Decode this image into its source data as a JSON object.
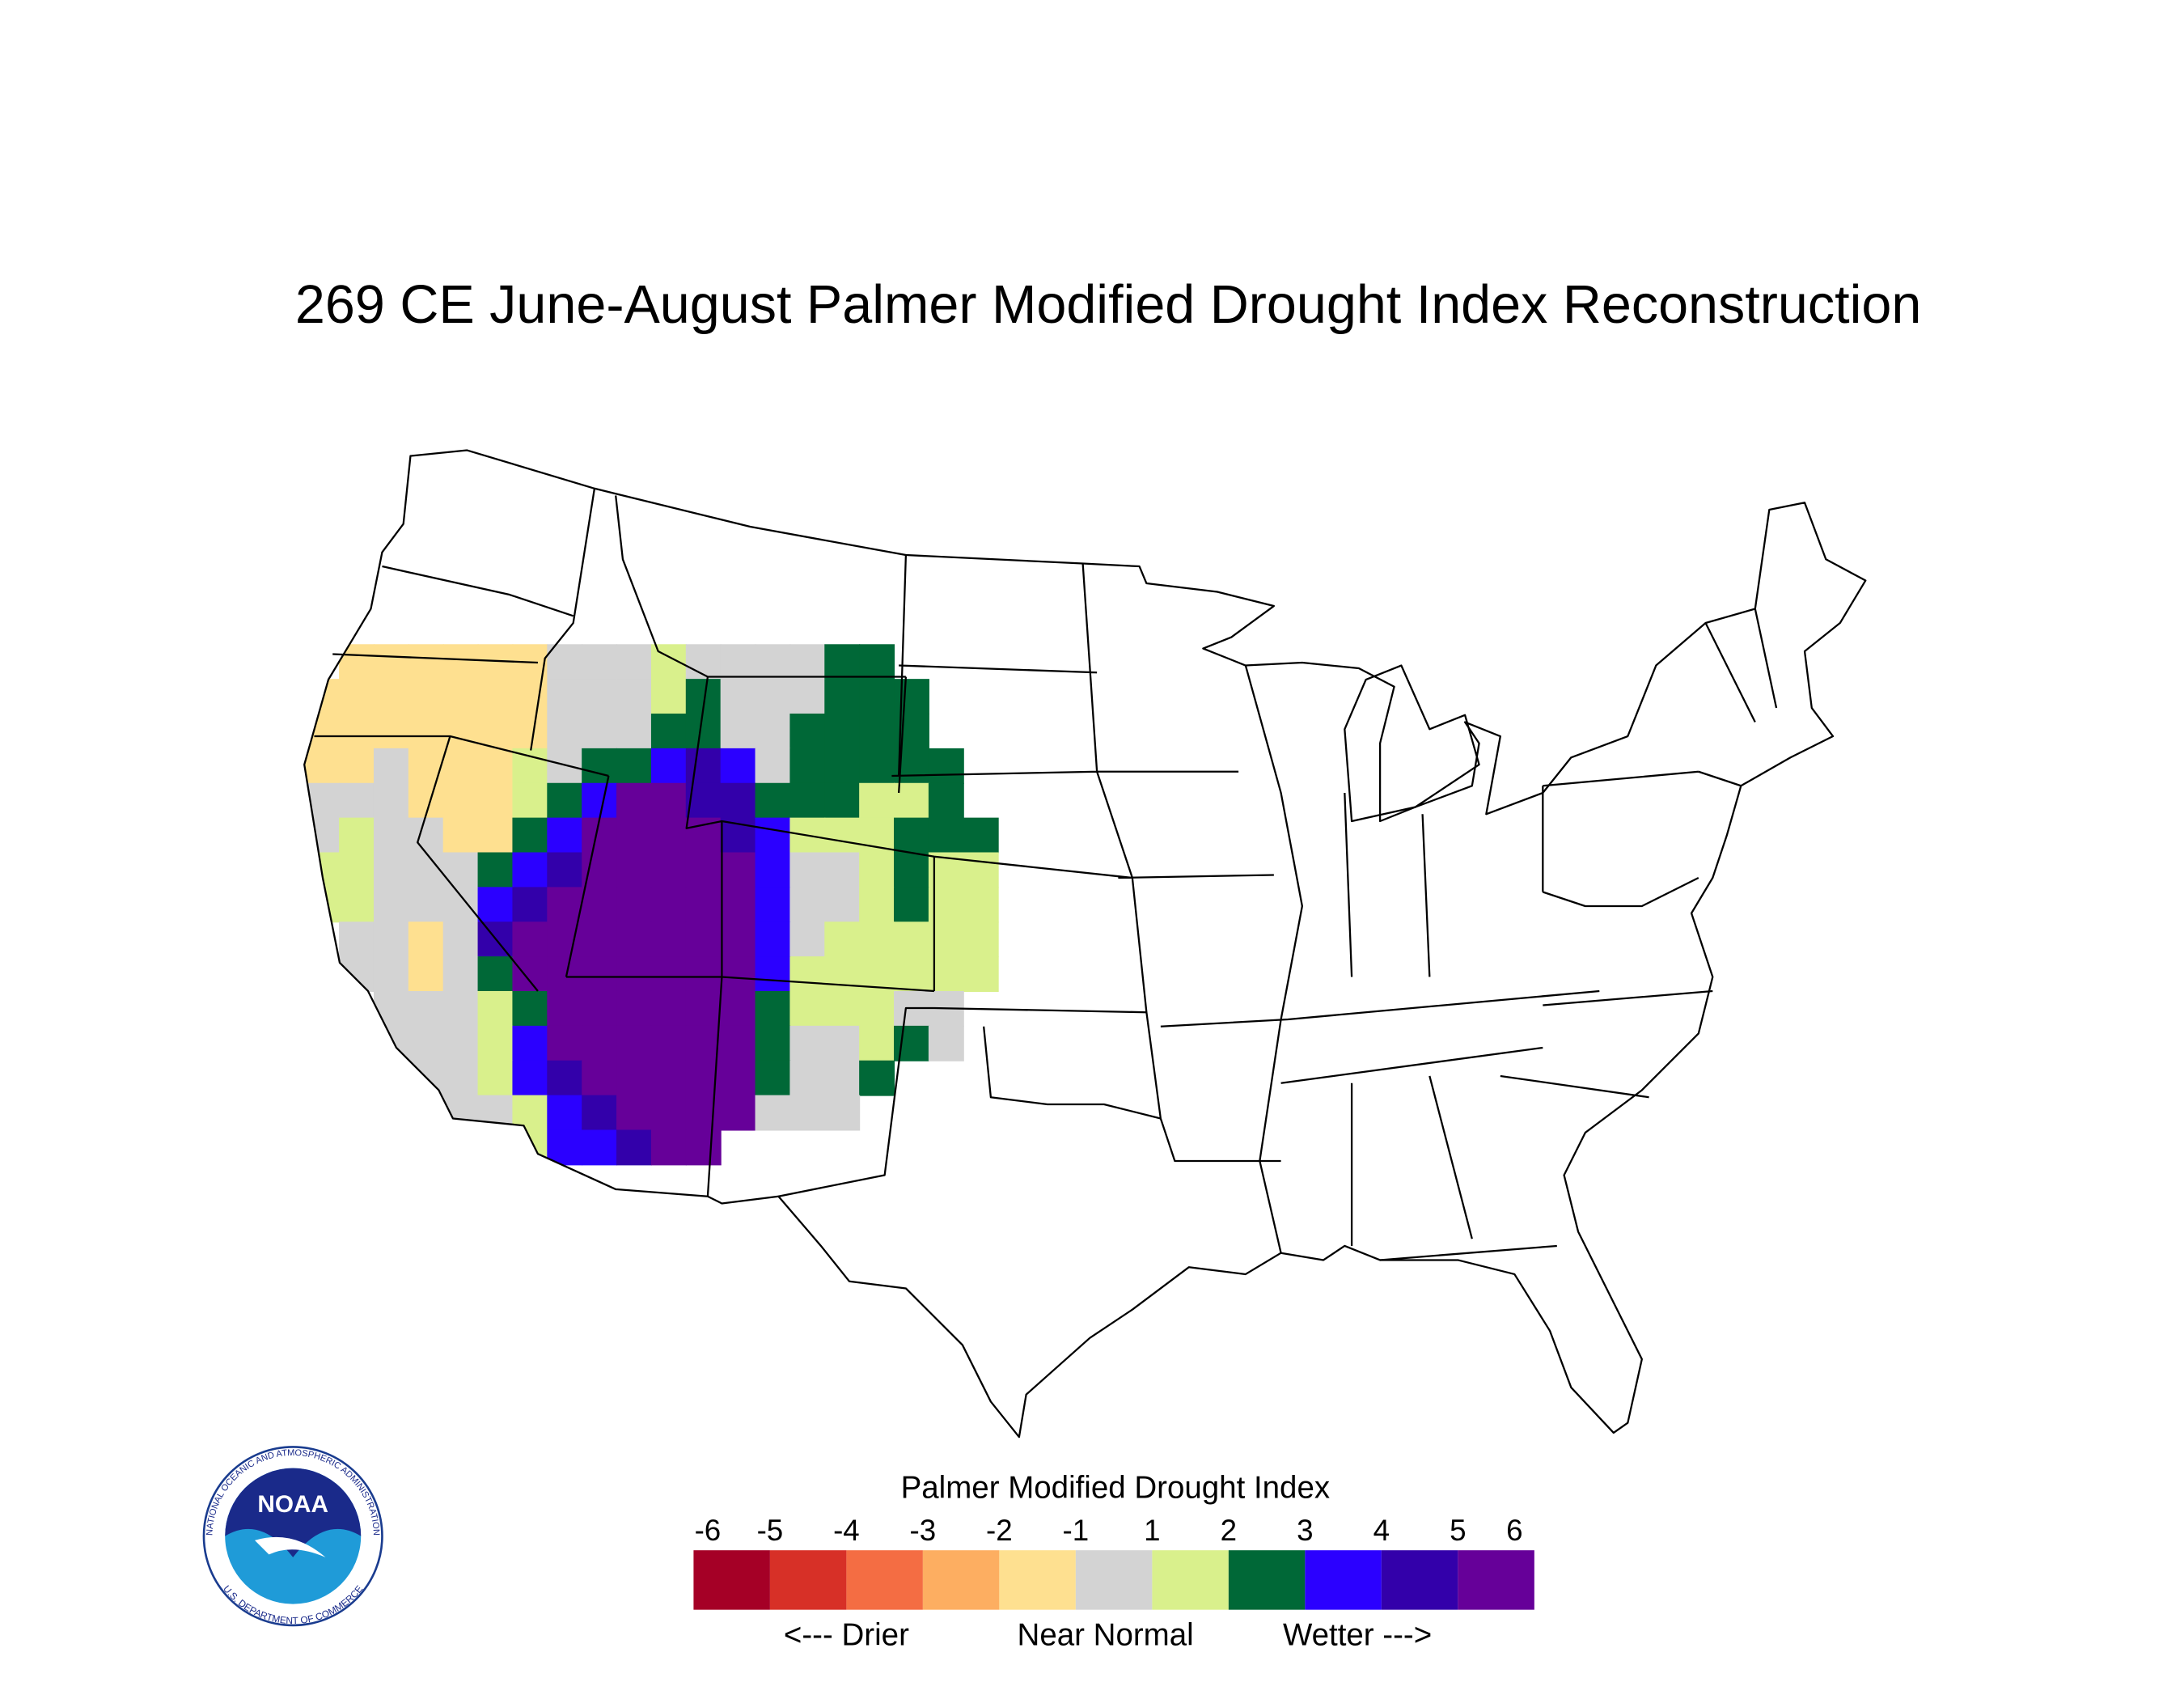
{
  "title": "269 CE  June-August  Palmer Modified Drought Index Reconstruction",
  "map": {
    "cell_values": [
      [
        null,
        -1.5,
        -1.5,
        -1.5,
        -1.5,
        -1.5,
        -1.5,
        0,
        0,
        0,
        1.5,
        0,
        0,
        0,
        0,
        2.5,
        2.5,
        null,
        null,
        null
      ],
      [
        -1.5,
        -1.5,
        -1.5,
        -1.5,
        -1.5,
        -1.5,
        -1.5,
        0,
        0,
        0,
        1.5,
        2.5,
        0,
        0,
        0,
        2.5,
        2.5,
        2.5,
        null,
        null
      ],
      [
        -1.5,
        -1.5,
        -1.5,
        -1.5,
        -1.5,
        -1.5,
        -1.5,
        0,
        0,
        0,
        2.5,
        2.5,
        0,
        0,
        2.5,
        2.5,
        2.5,
        2.5,
        null,
        null
      ],
      [
        -1.5,
        -1.5,
        0,
        -1.5,
        -1.5,
        -1.5,
        1.5,
        0,
        2.5,
        2.5,
        3.5,
        4.5,
        3.5,
        0,
        2.5,
        2.5,
        2.5,
        2.5,
        2.5,
        null
      ],
      [
        0,
        0,
        0,
        -1.5,
        -1.5,
        -1.5,
        1.5,
        2.5,
        3.5,
        5.5,
        5.5,
        4.5,
        4.5,
        2.5,
        2.5,
        2.5,
        1.5,
        1.5,
        2.5,
        null
      ],
      [
        0,
        1.5,
        0,
        0,
        -1.5,
        -1.5,
        2.5,
        3.5,
        5.5,
        5.5,
        5.5,
        5.5,
        4.5,
        3.5,
        1.5,
        1.5,
        1.5,
        2.5,
        2.5,
        2.5
      ],
      [
        1.5,
        1.5,
        0,
        0,
        0,
        2.5,
        3.5,
        4.5,
        5.5,
        5.5,
        5.5,
        5.5,
        5.5,
        3.5,
        0,
        0,
        1.5,
        2.5,
        1.5,
        1.5
      ],
      [
        1.5,
        1.5,
        0,
        0,
        0,
        3.5,
        4.5,
        5.5,
        5.5,
        5.5,
        5.5,
        5.5,
        5.5,
        3.5,
        0,
        0,
        1.5,
        2.5,
        1.5,
        1.5
      ],
      [
        null,
        0,
        0,
        -1.5,
        0,
        4.5,
        5.5,
        5.5,
        5.5,
        5.5,
        5.5,
        5.5,
        5.5,
        3.5,
        0,
        1.5,
        1.5,
        1.5,
        1.5,
        1.5
      ],
      [
        null,
        0,
        0,
        -1.5,
        0,
        2.5,
        5.5,
        5.5,
        5.5,
        5.5,
        5.5,
        5.5,
        5.5,
        3.5,
        1.5,
        1.5,
        1.5,
        1.5,
        1.5,
        1.5
      ],
      [
        null,
        null,
        0,
        0,
        0,
        1.5,
        2.5,
        5.5,
        5.5,
        5.5,
        5.5,
        5.5,
        5.5,
        2.5,
        1.5,
        1.5,
        1.5,
        0,
        0,
        null
      ],
      [
        null,
        null,
        0,
        0,
        0,
        1.5,
        3.5,
        5.5,
        5.5,
        5.5,
        5.5,
        5.5,
        5.5,
        2.5,
        0,
        0,
        1.5,
        2.5,
        0,
        null
      ],
      [
        null,
        null,
        null,
        0,
        0,
        1.5,
        3.5,
        4.5,
        5.5,
        5.5,
        5.5,
        5.5,
        5.5,
        2.5,
        0,
        0,
        2.5,
        null,
        null,
        null
      ],
      [
        null,
        null,
        null,
        null,
        0,
        0,
        1.5,
        3.5,
        4.5,
        5.5,
        5.5,
        5.5,
        5.5,
        0,
        0,
        0,
        null,
        null,
        null,
        null
      ],
      [
        null,
        null,
        null,
        null,
        null,
        null,
        1.5,
        3.5,
        3.5,
        4.5,
        5.5,
        5.5,
        null,
        null,
        null,
        null,
        null,
        null,
        null,
        null
      ]
    ]
  },
  "legend": {
    "title": "Palmer Modified Drought Index",
    "ticks": [
      -6,
      -5,
      -4,
      -3,
      -2,
      -1,
      1,
      2,
      3,
      4,
      5,
      6
    ],
    "colors": [
      "#a50026",
      "#d73027",
      "#f46d43",
      "#fdae61",
      "#fee090",
      "#d3d3d3",
      "#d9f08c",
      "#006837",
      "#2b00ff",
      "#3300aa",
      "#660099"
    ],
    "labels": [
      "<--- Drier",
      "Near Normal",
      "Wetter --->"
    ]
  },
  "logo": {
    "name": "NOAA",
    "top_text": "NATIONAL OCEANIC AND ATMOSPHERIC ADMINISTRATION",
    "bottom_text": "U.S. DEPARTMENT OF COMMERCE"
  }
}
